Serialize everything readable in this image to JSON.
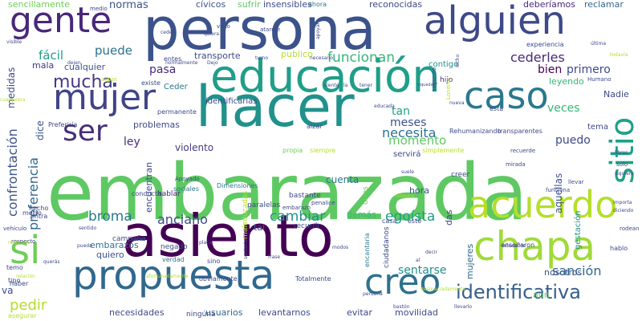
{
  "words": [
    {
      "text": "embarazada",
      "color": "#5ec962",
      "size": 96
    },
    {
      "text": "persona",
      "color": "#3b528b",
      "size": 72
    },
    {
      "text": "asiento",
      "color": "#440154",
      "size": 72
    },
    {
      "text": "hacer",
      "color": "#21918c",
      "size": 70
    },
    {
      "text": "educación",
      "color": "#1f9e89",
      "size": 56
    },
    {
      "text": "propuesta",
      "color": "#31688e",
      "size": 50
    },
    {
      "text": "chapa",
      "color": "#a0da39",
      "size": 50
    },
    {
      "text": "si",
      "color": "#6ece58",
      "size": 48
    },
    {
      "text": "alguien",
      "color": "#3e4989",
      "size": 48
    },
    {
      "text": "acuerdo",
      "color": "#b5de2b",
      "size": 46
    },
    {
      "text": "caso",
      "color": "#2a788e",
      "size": 46
    },
    {
      "text": "mujer",
      "color": "#414487",
      "size": 44
    },
    {
      "text": "gente",
      "color": "#482878",
      "size": 44
    },
    {
      "text": "creo",
      "color": "#2c728e",
      "size": 44
    },
    {
      "text": "sitio",
      "color": "#1fa088",
      "size": 40
    },
    {
      "text": "ser",
      "color": "#472d7b",
      "size": 36
    },
    {
      "text": "identificativa",
      "color": "#355f8d",
      "size": 24
    },
    {
      "text": "mucha",
      "color": "#443983",
      "size": 22
    },
    {
      "text": "confrontación",
      "color": "#3b528b",
      "size": 16
    },
    {
      "text": "preferencia",
      "color": "#31688e",
      "size": 16
    },
    {
      "text": "pedir",
      "color": "#b5de2b",
      "size": 18
    },
    {
      "text": "broma",
      "color": "#2a788e",
      "size": 17
    },
    {
      "text": "cambiar",
      "color": "#21918c",
      "size": 17
    },
    {
      "text": "egoísta",
      "color": "#1f9e89",
      "size": 17
    },
    {
      "text": "funcionan",
      "color": "#35b779",
      "size": 17
    },
    {
      "text": "sentarse",
      "color": "#21918c",
      "size": 14
    },
    {
      "text": "sanción",
      "color": "#31688e",
      "size": 16
    },
    {
      "text": "cederles",
      "color": "#482878",
      "size": 16
    },
    {
      "text": "necesita",
      "color": "#2c728e",
      "size": 16
    },
    {
      "text": "anciano",
      "color": "#3e4989",
      "size": 16
    },
    {
      "text": "momento",
      "color": "#5ec962",
      "size": 15
    },
    {
      "text": "fácil",
      "color": "#1f9e89",
      "size": 15
    },
    {
      "text": "normas",
      "color": "#3b528b",
      "size": 13
    },
    {
      "text": "puede",
      "color": "#2c728e",
      "size": 15
    },
    {
      "text": "pasa",
      "color": "#482878",
      "size": 14
    },
    {
      "text": "bien",
      "color": "#440154",
      "size": 14
    },
    {
      "text": "primero",
      "color": "#3e4989",
      "size": 14
    },
    {
      "text": "veces",
      "color": "#35b779",
      "size": 14
    },
    {
      "text": "tan",
      "color": "#1fa088",
      "size": 14
    },
    {
      "text": "meses",
      "color": "#3b528b",
      "size": 14
    },
    {
      "text": "puedo",
      "color": "#3e4989",
      "size": 14
    },
    {
      "text": "ley",
      "color": "#472d7b",
      "size": 14
    },
    {
      "text": "violento",
      "color": "#443983",
      "size": 12
    },
    {
      "text": "cuenta",
      "color": "#2c728e",
      "size": 12
    },
    {
      "text": "medidas",
      "color": "#3e4989",
      "size": 12
    },
    {
      "text": "dice",
      "color": "#3b528b",
      "size": 12
    },
    {
      "text": "mala",
      "color": "#443983",
      "size": 11
    },
    {
      "text": "problemas",
      "color": "#3e4989",
      "size": 11
    },
    {
      "text": "reconocidas",
      "color": "#3e4989",
      "size": 11
    },
    {
      "text": "deberíamos",
      "color": "#482878",
      "size": 11
    },
    {
      "text": "reclamar",
      "color": "#31688e",
      "size": 11
    },
    {
      "text": "insensibles",
      "color": "#3e4989",
      "size": 11
    },
    {
      "text": "sencillamente",
      "color": "#6ece58",
      "size": 11
    },
    {
      "text": "cívicos",
      "color": "#3b528b",
      "size": 11
    },
    {
      "text": "sufrir",
      "color": "#5ec962",
      "size": 11
    },
    {
      "text": "ahora",
      "color": "#2a788e",
      "size": 8
    },
    {
      "text": "transporte",
      "color": "#3e4989",
      "size": 11
    },
    {
      "text": "publico",
      "color": "#b5de2b",
      "size": 11
    },
    {
      "text": "leyendo",
      "color": "#35b779",
      "size": 11
    },
    {
      "text": "contigo",
      "color": "#21918c",
      "size": 10
    },
    {
      "text": "hijo",
      "color": "#472d7b",
      "size": 9
    },
    {
      "text": "Nadie",
      "color": "#3e4989",
      "size": 11
    },
    {
      "text": "cualquier",
      "color": "#3b528b",
      "size": 11
    },
    {
      "text": "identificarlas",
      "color": "#3e4989",
      "size": 10
    },
    {
      "text": "encuentran",
      "color": "#3e4989",
      "size": 11
    },
    {
      "text": "hablar",
      "color": "#482878",
      "size": 9
    },
    {
      "text": "maleducadas",
      "color": "#b5de2b",
      "size": 9
    },
    {
      "text": "Dimensiones",
      "color": "#2a788e",
      "size": 8
    },
    {
      "text": "sociales",
      "color": "#2c728e",
      "size": 8
    },
    {
      "text": "embarazos",
      "color": "#2c728e",
      "size": 11
    },
    {
      "text": "quiero",
      "color": "#3b528b",
      "size": 11
    },
    {
      "text": "necesidades",
      "color": "#3e4989",
      "size": 11
    },
    {
      "text": "usuarios",
      "color": "#31688e",
      "size": 11
    },
    {
      "text": "levantarnos",
      "color": "#3e4989",
      "size": 11
    },
    {
      "text": "evitar",
      "color": "#3e4989",
      "size": 11
    },
    {
      "text": "movilidad",
      "color": "#3e4989",
      "size": 11
    },
    {
      "text": "aún",
      "color": "#6ece58",
      "size": 11
    },
    {
      "text": "nosotros",
      "color": "#3b528b",
      "size": 11
    },
    {
      "text": "demás",
      "color": "#35b779",
      "size": 11
    },
    {
      "text": "tema",
      "color": "#3e4989",
      "size": 10
    },
    {
      "text": "hora",
      "color": "#3b528b",
      "size": 11
    },
    {
      "text": "das",
      "color": "#3e4989",
      "size": 11
    },
    {
      "text": "mujeres",
      "color": "#31688e",
      "size": 11
    },
    {
      "text": "ciudadanos",
      "color": "#3e4989",
      "size": 9
    },
    {
      "text": "encantaria",
      "color": "#2a788e",
      "size": 8
    },
    {
      "text": "creer",
      "color": "#3e4989",
      "size": 9
    },
    {
      "text": "gestación",
      "color": "#21918c",
      "size": 10
    },
    {
      "text": "aquellas",
      "color": "#3b528b",
      "size": 12
    },
    {
      "text": "ningúna",
      "color": "#3e4989",
      "size": 9
    },
    {
      "text": "tal",
      "color": "#3b528b",
      "size": 11
    },
    {
      "text": "recurrir",
      "color": "#3e4989",
      "size": 9
    },
    {
      "text": "verdad",
      "color": "#2c728e",
      "size": 8
    },
    {
      "text": "sino",
      "color": "#3e4989",
      "size": 8
    },
    {
      "text": "Ceder",
      "color": "#2a788e",
      "size": 10
    },
    {
      "text": "entes",
      "color": "#3e4989",
      "size": 8
    },
    {
      "text": "Totalmente",
      "color": "#3e4989",
      "size": 8
    },
    {
      "text": "obviamente",
      "color": "#3e4989",
      "size": 8
    },
    {
      "text": "enseñaron",
      "color": "#3e4989",
      "size": 8
    },
    {
      "text": "Rehumanizando",
      "color": "#3e4989",
      "size": 8
    },
    {
      "text": "transparentes",
      "color": "#3e4989",
      "size": 8
    },
    {
      "text": "experiencia",
      "color": "#3e4989",
      "size": 8
    },
    {
      "text": "Humano",
      "color": "#3e4989",
      "size": 7
    },
    {
      "text": "Preferiría",
      "color": "#3e4989",
      "size": 8
    },
    {
      "text": "siempre",
      "color": "#b5de2b",
      "size": 8
    },
    {
      "text": "propia",
      "color": "#6ece58",
      "size": 8
    },
    {
      "text": "simplemente",
      "color": "#b5de2b",
      "size": 8
    },
    {
      "text": "Apoyado",
      "color": "#3e4989",
      "size": 7
    },
    {
      "text": "alzar",
      "color": "#3e4989",
      "size": 8
    },
    {
      "text": "servirá",
      "color": "#3e4989",
      "size": 10
    },
    {
      "text": "bastante",
      "color": "#3e4989",
      "size": 9
    },
    {
      "text": "paralelas",
      "color": "#3e4989",
      "size": 9
    },
    {
      "text": "campaña",
      "color": "#3e4989",
      "size": 9
    },
    {
      "text": "negado",
      "color": "#3e4989",
      "size": 9
    },
    {
      "text": "conducta",
      "color": "#3e4989",
      "size": 8
    },
    {
      "text": "metro",
      "color": "#3e4989",
      "size": 8
    },
    {
      "text": "permanente",
      "color": "#3e4989",
      "size": 8
    },
    {
      "text": "existe",
      "color": "#3e4989",
      "size": 8
    },
    {
      "text": "otros",
      "color": "#6ece58",
      "size": 9
    },
    {
      "text": "hecho",
      "color": "#3e4989",
      "size": 8
    },
    {
      "text": "entra",
      "color": "#3e4989",
      "size": 8
    },
    {
      "text": "vehículo",
      "color": "#3e4989",
      "size": 7
    },
    {
      "text": "respecto",
      "color": "#3e4989",
      "size": 7
    },
    {
      "text": "temo",
      "color": "#3e4989",
      "size": 8
    },
    {
      "text": "tipo",
      "color": "#3e4989",
      "size": 8
    },
    {
      "text": "haber",
      "color": "#3e4989",
      "size": 8
    },
    {
      "text": "va",
      "color": "#3e4989",
      "size": 12
    },
    {
      "text": "visto",
      "color": "#3e4989",
      "size": 7
    },
    {
      "text": "atarme",
      "color": "#3e4989",
      "size": 7
    },
    {
      "text": "llevar",
      "color": "#3e4989",
      "size": 7
    },
    {
      "text": "mirada",
      "color": "#3e4989",
      "size": 7
    },
    {
      "text": "funciona",
      "color": "#3e4989",
      "size": 7
    },
    {
      "text": "recuerde",
      "color": "#3e4989",
      "size": 7
    },
    {
      "text": "educada",
      "color": "#3e4989",
      "size": 6
    },
    {
      "text": "libres",
      "color": "#3e4989",
      "size": 6
    },
    {
      "text": "solo",
      "color": "#3e4989",
      "size": 7
    },
    {
      "text": "siquiera",
      "color": "#3e4989",
      "size": 6
    },
    {
      "text": "importa",
      "color": "#3e4989",
      "size": 6
    },
    {
      "text": "diciendo",
      "color": "#3e4989",
      "size": 6
    },
    {
      "text": "rodean",
      "color": "#3e4989",
      "size": 7
    },
    {
      "text": "hablo",
      "color": "#3e4989",
      "size": 8
    },
    {
      "text": "Londres",
      "color": "#b5de2b",
      "size": 7
    },
    {
      "text": "segundo",
      "color": "#3e4989",
      "size": 7
    },
    {
      "text": "sentarte",
      "color": "#3e4989",
      "size": 6
    },
    {
      "text": "frase",
      "color": "#3e4989",
      "size": 6
    },
    {
      "text": "bastón",
      "color": "#3e4989",
      "size": 6
    },
    {
      "text": "perdona",
      "color": "#3e4989",
      "size": 6
    },
    {
      "text": "decir",
      "color": "#3e4989",
      "size": 6
    },
    {
      "text": "asegurar",
      "color": "#b5de2b",
      "size": 8
    },
    {
      "text": "poner",
      "color": "#3e4989",
      "size": 6
    },
    {
      "text": "casa",
      "color": "#3e4989",
      "size": 8
    },
    {
      "text": "este",
      "color": "#3e4989",
      "size": 8
    },
    {
      "text": "modos",
      "color": "#3e4989",
      "size": 6
    },
    {
      "text": "placa",
      "color": "#3e4989",
      "size": 6
    },
    {
      "text": "penalice",
      "color": "#3e4989",
      "size": 7
    },
    {
      "text": "embarazo",
      "color": "#3e4989",
      "size": 7
    },
    {
      "text": "medio",
      "color": "#3e4989",
      "size": 7
    },
    {
      "text": "dejen",
      "color": "#3e4989",
      "size": 6
    },
    {
      "text": "normalmente",
      "color": "#3e4989",
      "size": 6
    },
    {
      "text": "Dejo",
      "color": "#3e4989",
      "size": 6
    },
    {
      "text": "algún",
      "color": "#b5de2b",
      "size": 7
    },
    {
      "text": "sentido",
      "color": "#3e4989",
      "size": 6
    },
    {
      "text": "turno",
      "color": "#3e4989",
      "size": 6
    },
    {
      "text": "visible",
      "color": "#3e4989",
      "size": 6
    },
    {
      "text": "cede",
      "color": "#3e4989",
      "size": 6
    },
    {
      "text": "quiera",
      "color": "#3e4989",
      "size": 6
    },
    {
      "text": "apoyar",
      "color": "#3e4989",
      "size": 6
    },
    {
      "text": "última",
      "color": "#3e4989",
      "size": 6
    },
    {
      "text": "todavía",
      "color": "#b5de2b",
      "size": 6
    },
    {
      "text": "educados",
      "color": "#3e4989",
      "size": 6
    },
    {
      "text": "suele",
      "color": "#3e4989",
      "size": 6
    },
    {
      "text": "pueda",
      "color": "#3e4989",
      "size": 6
    },
    {
      "text": "querás",
      "color": "#3e4989",
      "size": 6
    },
    {
      "text": "llevarlo",
      "color": "#3e4989",
      "size": 6
    },
    {
      "text": "relación",
      "color": "#b5de2b",
      "size": 6
    },
    {
      "text": "afortunadamente",
      "color": "#b5de2b",
      "size": 6
    },
    {
      "text": "desgraciadamente",
      "color": "#b5de2b",
      "size": 6
    },
    {
      "text": "cualquiera",
      "color": "#b5de2b",
      "size": 6
    },
    {
      "text": "responde",
      "color": "#b5de2b",
      "size": 6
    },
    {
      "text": "dicho",
      "color": "#3e4989",
      "size": 6
    },
    {
      "text": "esta",
      "color": "#3e4989",
      "size": 8
    },
    {
      "text": "nueva",
      "color": "#3e4989",
      "size": 6
    },
    {
      "text": "siquedan",
      "color": "#3e4989",
      "size": 5
    },
    {
      "text": "necesario",
      "color": "#3e4989",
      "size": 6
    },
    {
      "text": "la",
      "color": "#3e4989",
      "size": 6
    },
    {
      "text": "siente",
      "color": "#3e4989",
      "size": 6
    },
    {
      "text": "tener",
      "color": "#3e4989",
      "size": 6
    },
    {
      "text": "ninguno",
      "color": "#b5de2b",
      "size": 6
    },
    {
      "text": "al",
      "color": "#3e4989",
      "size": 6
    }
  ]
}
